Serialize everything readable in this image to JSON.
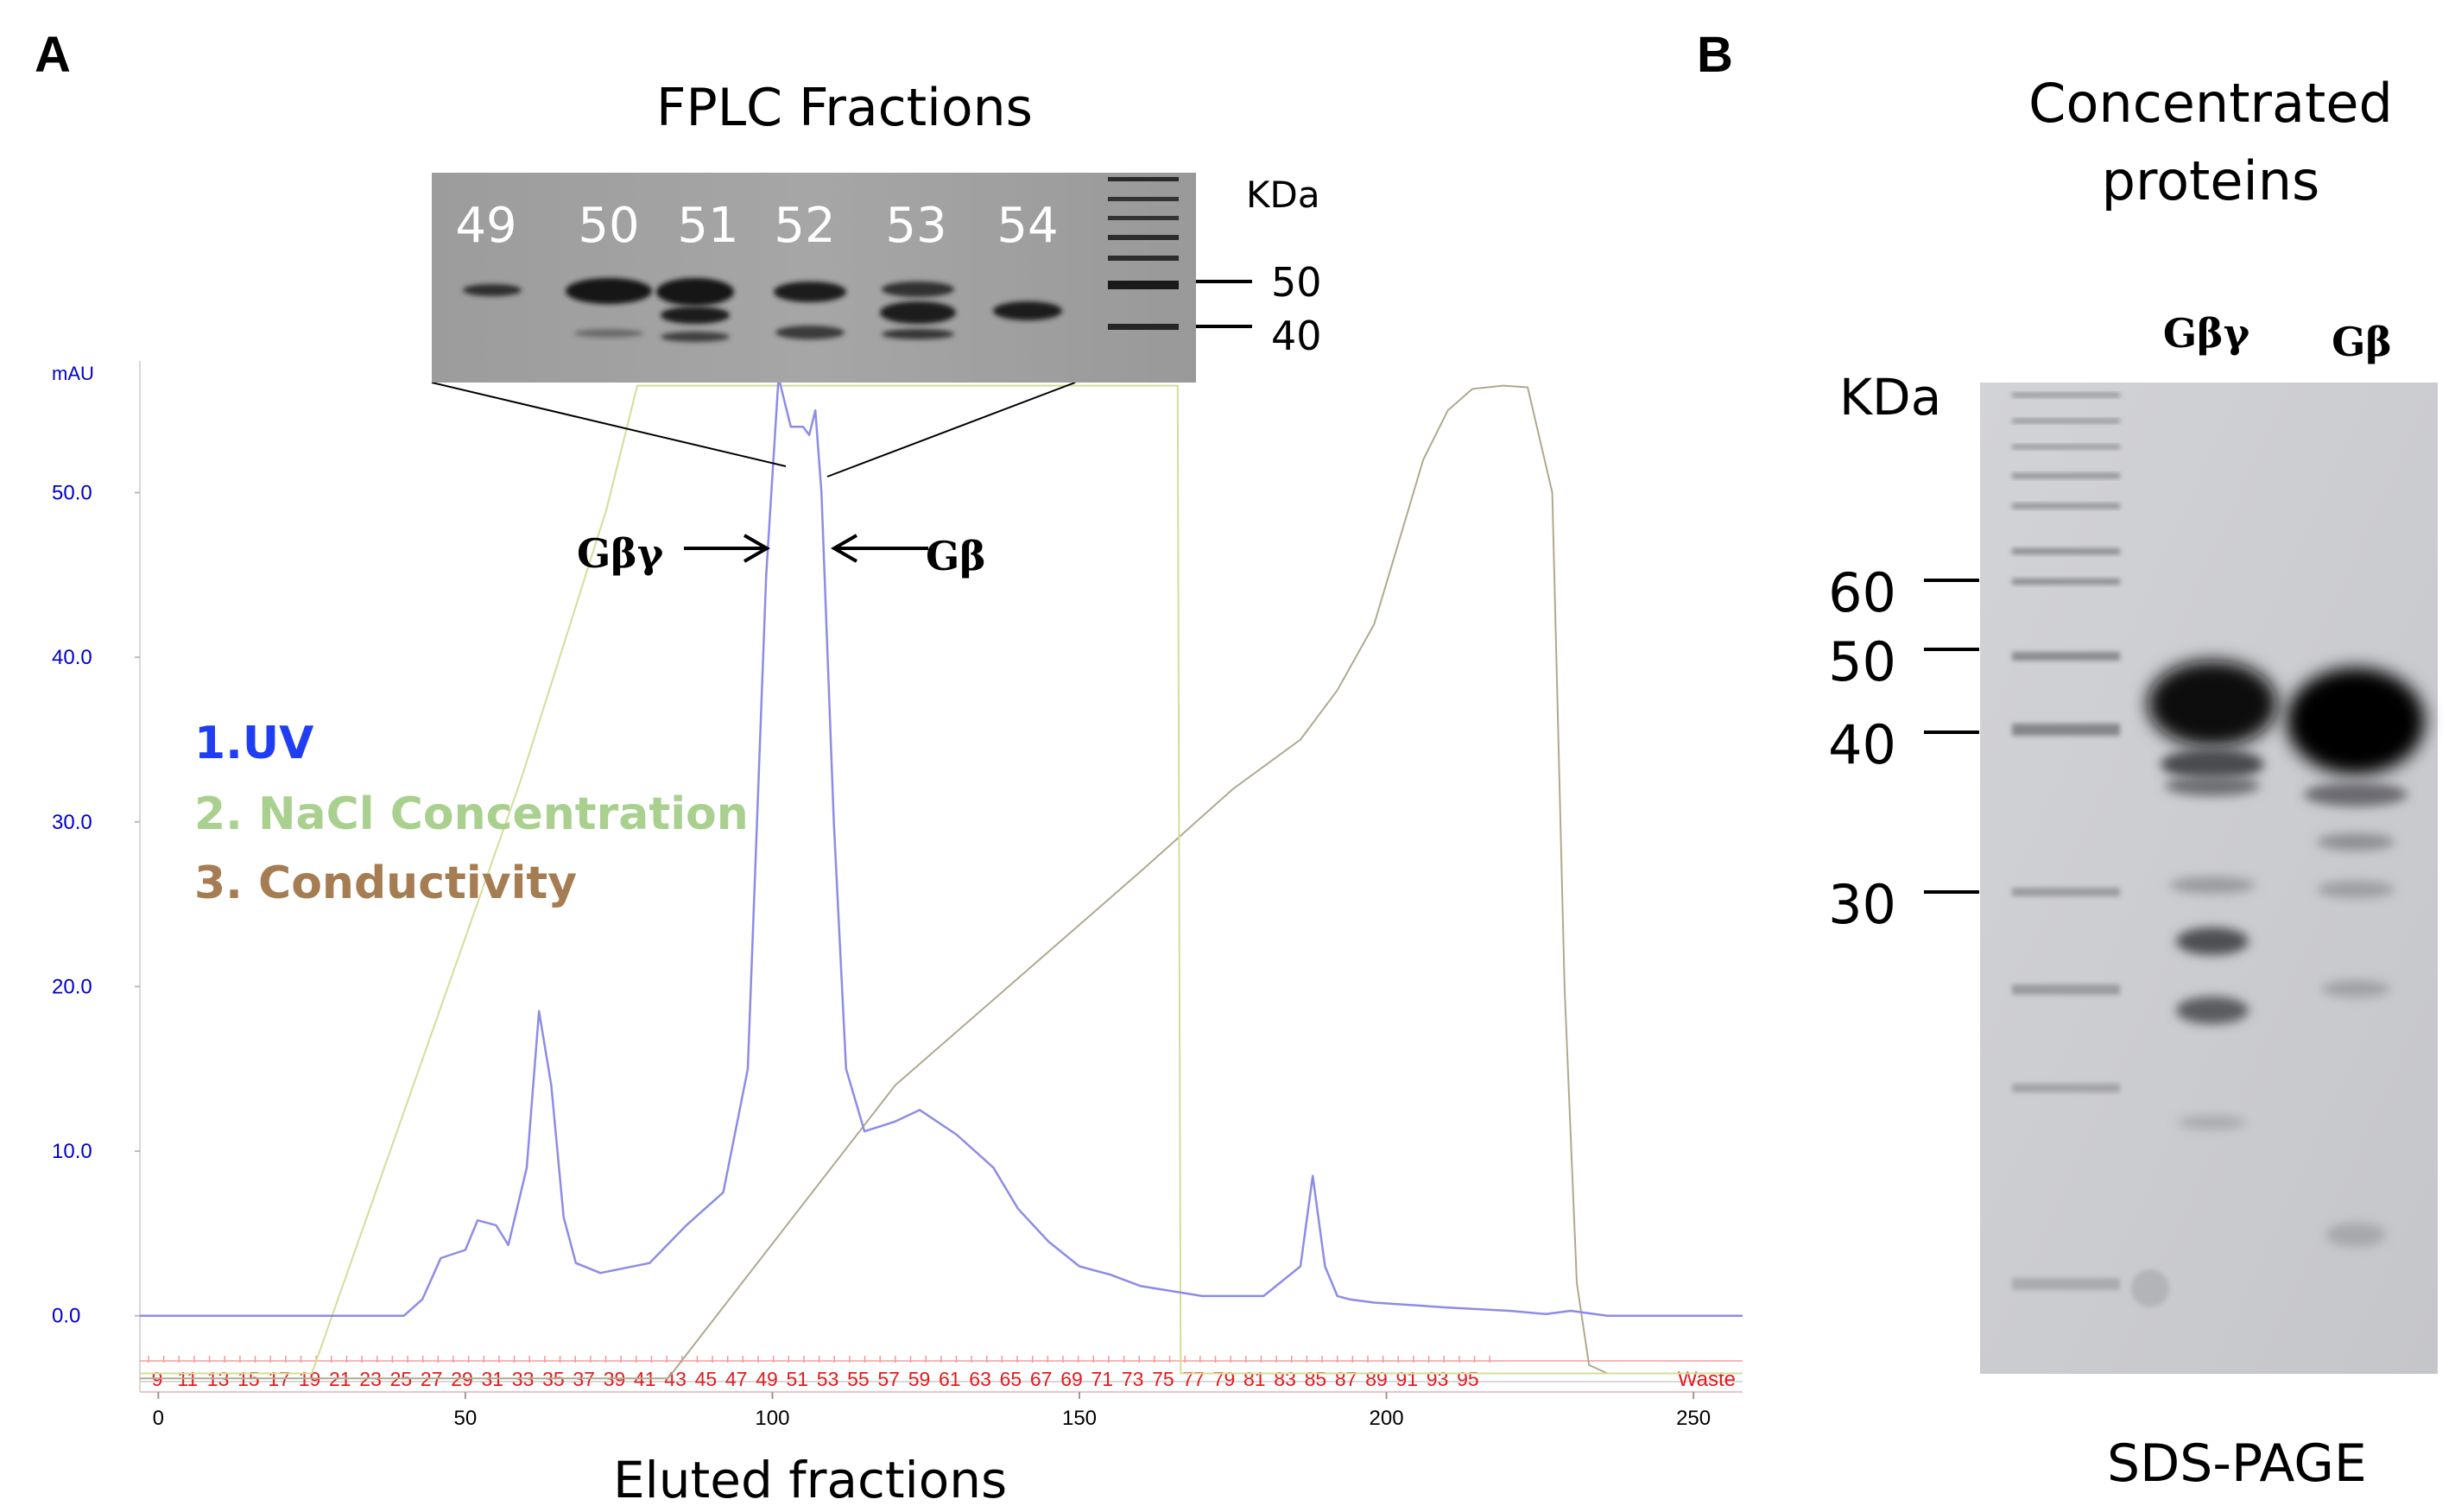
{
  "panels": {
    "a_letter": "A",
    "b_letter": "B"
  },
  "panel_a": {
    "gel_title": "FPLC Fractions",
    "gel_lanes": [
      "49",
      "50",
      "51",
      "52",
      "53",
      "54"
    ],
    "gel_unit": "KDa",
    "gel_markers": [
      "50",
      "40"
    ],
    "annotations": {
      "gby_label": "Gβγ",
      "gb_label": "Gβ"
    },
    "legend": [
      {
        "text": "1.UV",
        "color": "#1f3df5"
      },
      {
        "text": "2. NaCl Concentration",
        "color": "#a9d08e"
      },
      {
        "text": "3. Conductivity",
        "color": "#a67c52"
      }
    ],
    "fraction_labels": [
      "9",
      "11",
      "13",
      "15",
      "17",
      "19",
      "21",
      "23",
      "25",
      "27",
      "29",
      "31",
      "33",
      "35",
      "37",
      "39",
      "41",
      "43",
      "45",
      "47",
      "49",
      "51",
      "53",
      "55",
      "57",
      "59",
      "61",
      "63",
      "65",
      "67",
      "69",
      "71",
      "73",
      "75",
      "77",
      "79",
      "81",
      "83",
      "85",
      "87",
      "89",
      "91",
      "93",
      "95"
    ],
    "waste_label": "Waste",
    "fraction_color": "#e31a1c"
  },
  "panel_b": {
    "title_line1": "Concentrated",
    "title_line2": "proteins",
    "lane_labels": [
      "Gβγ",
      "Gβ"
    ],
    "unit": "KDa",
    "markers": [
      "60",
      "50",
      "40",
      "30"
    ],
    "method": "SDS-PAGE"
  },
  "chart_data": {
    "type": "line",
    "ylabel": "mAU",
    "xlabel": "Eluted fractions",
    "xlim": [
      -3,
      258
    ],
    "ylim": [
      -4,
      58
    ],
    "x_ticks": [
      0,
      50,
      100,
      150,
      200,
      250
    ],
    "y_ticks": [
      0.0,
      10.0,
      20.0,
      30.0,
      40.0,
      50.0
    ],
    "y_tick_labels": [
      "0.0",
      "10.0",
      "20.0",
      "30.0",
      "40.0",
      "50.0"
    ],
    "axis_color": "#0000cc",
    "series": [
      {
        "name": "1.UV",
        "color": "#8c8ce8",
        "x": [
          -3,
          30,
          40,
          43,
          46,
          50,
          52,
          55,
          57,
          60,
          62,
          64,
          66,
          68,
          72,
          80,
          86,
          92,
          96,
          99,
          101,
          103,
          105,
          106,
          107,
          108,
          110,
          112,
          115,
          120,
          124,
          130,
          136,
          140,
          145,
          150,
          155,
          160,
          170,
          180,
          186,
          188,
          190,
          192,
          194,
          198,
          210,
          220,
          226,
          230,
          236,
          258
        ],
        "y": [
          0,
          0,
          0,
          1,
          3.5,
          4,
          5.8,
          5.5,
          4.3,
          9,
          18.5,
          14,
          6,
          3.2,
          2.6,
          3.2,
          5.5,
          7.5,
          15,
          45,
          57,
          54,
          54,
          53.5,
          55,
          50,
          30,
          15,
          11.2,
          11.8,
          12.5,
          11,
          9,
          6.5,
          4.5,
          3,
          2.5,
          1.8,
          1.2,
          1.2,
          3,
          8.5,
          3,
          1.2,
          1,
          0.8,
          0.5,
          0.3,
          0.1,
          0.3,
          0,
          0
        ]
      },
      {
        "name": "2. NaCl Concentration",
        "color": "#d4dd9a",
        "x": [
          -3,
          25,
          59,
          73,
          78,
          166,
          166.5,
          258
        ],
        "y": [
          -3.5,
          -3.5,
          32.5,
          49,
          56.5,
          56.5,
          -3.5,
          -3.5
        ]
      },
      {
        "name": "3. Conductivity",
        "color": "#b0a98f",
        "x": [
          -3,
          83,
          120,
          160,
          175,
          186,
          192,
          198,
          202,
          206,
          210,
          214,
          219,
          223,
          227,
          229,
          231,
          233,
          236,
          258
        ],
        "y": [
          -3.8,
          -3.8,
          14,
          27,
          32,
          35,
          38,
          42,
          47,
          52,
          55,
          56.3,
          56.5,
          56.4,
          50,
          20,
          2,
          -3,
          -3.5,
          -3.5
        ]
      }
    ]
  }
}
